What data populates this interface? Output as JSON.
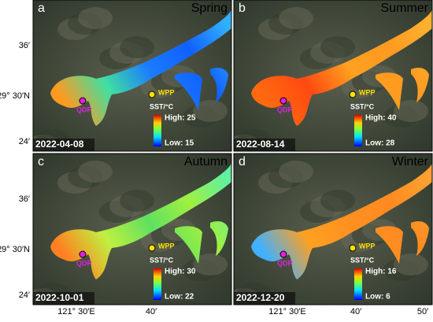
{
  "rows": [
    {
      "y_labels": [
        "36′",
        "29° 30′N",
        "24′"
      ]
    },
    {
      "y_labels": [
        "36′",
        "29° 30′N",
        "24′"
      ]
    }
  ],
  "columns": [
    {
      "x_labels": [
        "121° 30′E",
        "40′"
      ]
    },
    {
      "x_labels": [
        "121° 30′E",
        "40′",
        "50′"
      ]
    }
  ],
  "panels": [
    {
      "letter": "a",
      "season": "Spring",
      "date": "2022-04-08",
      "legend": {
        "title": "SST/°C",
        "high": "High: 25",
        "low": "Low: 15"
      },
      "sites": [
        "WPP",
        "QDP"
      ]
    },
    {
      "letter": "b",
      "season": "Summer",
      "date": "2022-08-14",
      "legend": {
        "title": "SST/°C",
        "high": "High: 40",
        "low": "Low: 28"
      },
      "sites": [
        "WPP",
        "QDP"
      ]
    },
    {
      "letter": "c",
      "season": "Autumn",
      "date": "2022-10-01",
      "legend": {
        "title": "SST/°C",
        "high": "High: 30",
        "low": "Low: 22"
      },
      "sites": [
        "WPP",
        "QDP"
      ]
    },
    {
      "letter": "d",
      "season": "Winter",
      "date": "2022-12-20",
      "legend": {
        "title": "SST/°C",
        "high": "High: 16",
        "low": "Low: 6"
      },
      "sites": [
        "WPP",
        "QDP"
      ]
    }
  ]
}
